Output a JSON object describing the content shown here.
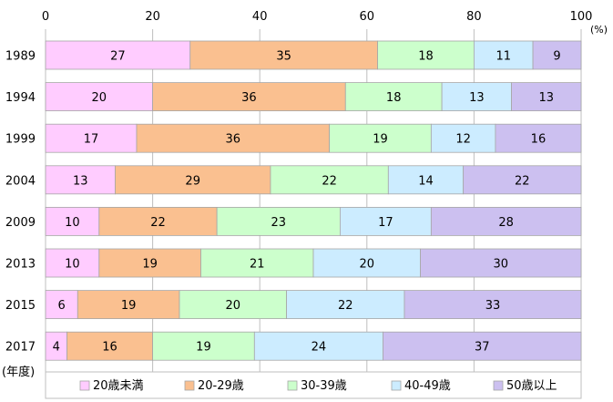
{
  "chart_data": {
    "type": "bar",
    "orientation": "horizontal",
    "stacked": true,
    "xlim": [
      0,
      100
    ],
    "xticks": [
      0,
      20,
      40,
      60,
      80,
      100
    ],
    "xunit": "(%)",
    "ylabel": "(年度)",
    "grid": true,
    "legend_position": "bottom",
    "categories": [
      "1989",
      "1994",
      "1999",
      "2004",
      "2009",
      "2013",
      "2015",
      "2017"
    ],
    "series": [
      {
        "name": "20歳未満",
        "color": "#FFCCFF",
        "values": [
          27,
          20,
          17,
          13,
          10,
          10,
          6,
          4
        ]
      },
      {
        "name": "20-29歳",
        "color": "#FAC090",
        "values": [
          35,
          36,
          36,
          29,
          22,
          19,
          19,
          16
        ]
      },
      {
        "name": "30-39歳",
        "color": "#CCFFCC",
        "values": [
          18,
          18,
          19,
          22,
          23,
          21,
          20,
          19
        ]
      },
      {
        "name": "40-49歳",
        "color": "#CCECFF",
        "values": [
          11,
          13,
          12,
          14,
          17,
          20,
          22,
          24
        ]
      },
      {
        "name": "50歳以上",
        "color": "#CCC0F0",
        "values": [
          9,
          13,
          16,
          22,
          28,
          30,
          33,
          37
        ]
      }
    ]
  }
}
